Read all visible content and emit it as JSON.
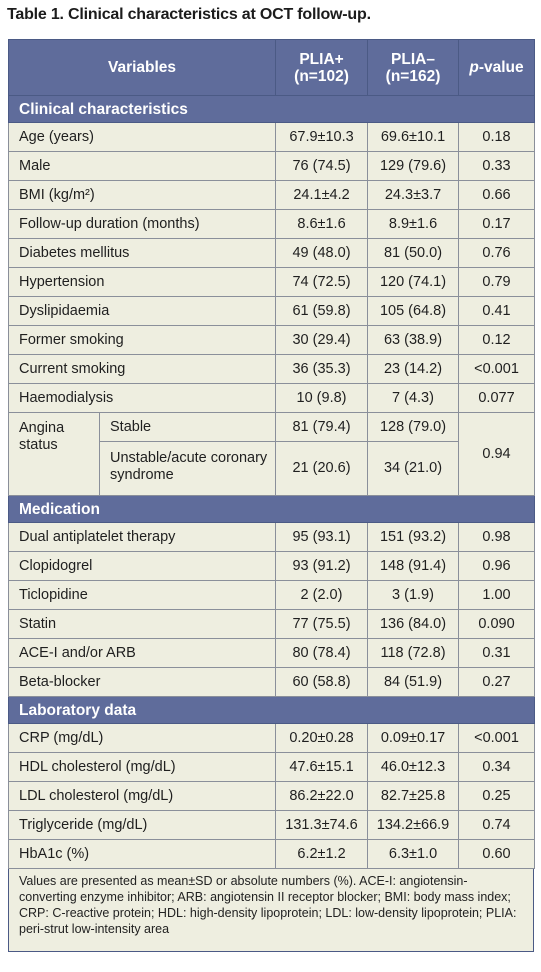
{
  "title": "Table 1. Clinical characteristics at OCT follow-up.",
  "header": {
    "variables": "Variables",
    "plia_pos_line1": "PLIA+",
    "plia_pos_line2": "(n=102)",
    "plia_neg_line1": "PLIA–",
    "plia_neg_line2": "(n=162)",
    "p_italic": "p",
    "p_rest": "-value"
  },
  "sections": {
    "clinical": "Clinical characteristics",
    "medication": "Medication",
    "laboratory": "Laboratory data"
  },
  "clinical_rows": [
    {
      "variable": "Age (years)",
      "pos": "67.9±10.3",
      "neg": "69.6±10.1",
      "p": "0.18"
    },
    {
      "variable": "Male",
      "pos": "76 (74.5)",
      "neg": "129 (79.6)",
      "p": "0.33"
    },
    {
      "variable": "BMI (kg/m²)",
      "pos": "24.1±4.2",
      "neg": "24.3±3.7",
      "p": "0.66"
    },
    {
      "variable": "Follow-up duration (months)",
      "pos": "8.6±1.6",
      "neg": "8.9±1.6",
      "p": "0.17"
    },
    {
      "variable": "Diabetes mellitus",
      "pos": "49 (48.0)",
      "neg": "81 (50.0)",
      "p": "0.76"
    },
    {
      "variable": "Hypertension",
      "pos": "74 (72.5)",
      "neg": "120 (74.1)",
      "p": "0.79"
    },
    {
      "variable": "Dyslipidaemia",
      "pos": "61 (59.8)",
      "neg": "105 (64.8)",
      "p": "0.41"
    },
    {
      "variable": "Former smoking",
      "pos": "30 (29.4)",
      "neg": "63 (38.9)",
      "p": "0.12"
    },
    {
      "variable": "Current smoking",
      "pos": "36 (35.3)",
      "neg": "23 (14.2)",
      "p": "<0.001"
    },
    {
      "variable": "Haemodialysis",
      "pos": "10 (9.8)",
      "neg": "7 (4.3)",
      "p": "0.077"
    }
  ],
  "angina": {
    "label": "Angina status",
    "p": "0.94",
    "stable": {
      "label": "Stable",
      "pos": "81 (79.4)",
      "neg": "128 (79.0)"
    },
    "unstable": {
      "label": "Unstable/acute coronary syndrome",
      "pos": "21 (20.6)",
      "neg": "34 (21.0)"
    }
  },
  "medication_rows": [
    {
      "variable": "Dual antiplatelet therapy",
      "pos": "95 (93.1)",
      "neg": "151 (93.2)",
      "p": "0.98"
    },
    {
      "variable": "Clopidogrel",
      "pos": "93 (91.2)",
      "neg": "148 (91.4)",
      "p": "0.96"
    },
    {
      "variable": "Ticlopidine",
      "pos": "2 (2.0)",
      "neg": "3 (1.9)",
      "p": "1.00"
    },
    {
      "variable": "Statin",
      "pos": "77 (75.5)",
      "neg": "136 (84.0)",
      "p": "0.090"
    },
    {
      "variable": "ACE-I and/or ARB",
      "pos": "80 (78.4)",
      "neg": "118 (72.8)",
      "p": "0.31"
    },
    {
      "variable": "Beta-blocker",
      "pos": "60 (58.8)",
      "neg": "84 (51.9)",
      "p": "0.27"
    }
  ],
  "laboratory_rows": [
    {
      "variable": "CRP (mg/dL)",
      "pos": "0.20±0.28",
      "neg": "0.09±0.17",
      "p": "<0.001"
    },
    {
      "variable": "HDL cholesterol (mg/dL)",
      "pos": "47.6±15.1",
      "neg": "46.0±12.3",
      "p": "0.34"
    },
    {
      "variable": "LDL cholesterol (mg/dL)",
      "pos": "86.2±22.0",
      "neg": "82.7±25.8",
      "p": "0.25"
    },
    {
      "variable": "Triglyceride (mg/dL)",
      "pos": "131.3±74.6",
      "neg": "134.2±66.9",
      "p": "0.74"
    },
    {
      "variable": "HbA1c (%)",
      "pos": "6.2±1.2",
      "neg": "6.3±1.0",
      "p": "0.60"
    }
  ],
  "footnote": "Values are presented as mean±SD or absolute numbers (%). ACE-I: angiotensin-converting enzyme inhibitor; ARB: angiotensin II receptor blocker; BMI: body mass index; CRP: C-reactive protein; HDL: high-density lipoprotein; LDL: low-density lipoprotein; PLIA: peri-strut low-intensity area"
}
